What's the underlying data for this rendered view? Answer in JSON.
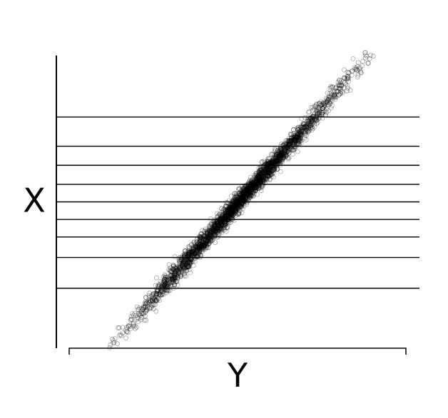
{
  "chart_data": {
    "type": "scatter",
    "title": "",
    "xlabel": "Y",
    "ylabel": "X",
    "grid": false,
    "legend": "none",
    "point_color": "#000000",
    "point_alpha": 0.35,
    "axis_ticks": "none",
    "xlim": [
      0,
      1
    ],
    "ylim": [
      0,
      1
    ],
    "series": [
      {
        "trend": {
          "x0": 0.12,
          "y0": 0.0,
          "x1": 0.89,
          "y1": 1.0
        },
        "spread_sd": 0.012,
        "count": 3000
      }
    ],
    "reference_lines": {
      "orientation": "horizontal",
      "y_values": [
        0.205,
        0.31,
        0.38,
        0.44,
        0.5,
        0.56,
        0.625,
        0.69,
        0.79
      ]
    }
  }
}
